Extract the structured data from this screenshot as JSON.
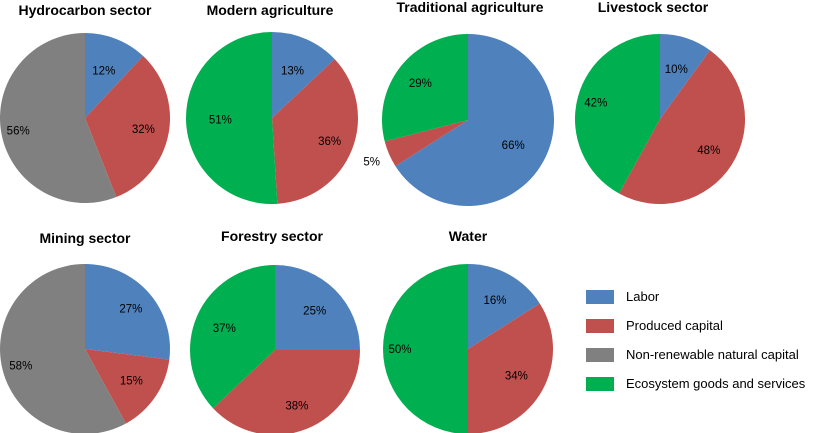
{
  "series_names": [
    "Labor",
    "Produced capital",
    "Non-renewable natural capital",
    "Ecosystem goods and services"
  ],
  "colors": {
    "Labor": "#4f81bd",
    "Produced capital": "#c0504d",
    "Non-renewable natural capital": "#808080",
    "Ecosystem goods and services": "#00b050"
  },
  "chart_data": [
    {
      "type": "pie",
      "title": "Hydrocarbon sector",
      "slices": [
        {
          "name": "Labor",
          "value": 12,
          "label": "12%"
        },
        {
          "name": "Produced capital",
          "value": 32,
          "label": "32%"
        },
        {
          "name": "Non-renewable natural capital",
          "value": 56,
          "label": "56%"
        }
      ]
    },
    {
      "type": "pie",
      "title": "Modern agriculture",
      "slices": [
        {
          "name": "Labor",
          "value": 13,
          "label": "13%"
        },
        {
          "name": "Produced capital",
          "value": 36,
          "label": "36%"
        },
        {
          "name": "Ecosystem goods and services",
          "value": 51,
          "label": "51%"
        }
      ]
    },
    {
      "type": "pie",
      "title": "Traditional agriculture",
      "slices": [
        {
          "name": "Labor",
          "value": 66,
          "label": "66%"
        },
        {
          "name": "Produced capital",
          "value": 5,
          "label": "5%"
        },
        {
          "name": "Ecosystem goods and services",
          "value": 29,
          "label": "29%"
        }
      ]
    },
    {
      "type": "pie",
      "title": "Livestock sector",
      "slices": [
        {
          "name": "Labor",
          "value": 10,
          "label": "10%"
        },
        {
          "name": "Produced capital",
          "value": 48,
          "label": "48%"
        },
        {
          "name": "Ecosystem goods and services",
          "value": 42,
          "label": "42%"
        }
      ]
    },
    {
      "type": "pie",
      "title": "Mining sector",
      "slices": [
        {
          "name": "Labor",
          "value": 27,
          "label": "27%"
        },
        {
          "name": "Produced capital",
          "value": 15,
          "label": "15%"
        },
        {
          "name": "Non-renewable natural capital",
          "value": 58,
          "label": "58%"
        }
      ]
    },
    {
      "type": "pie",
      "title": "Forestry sector",
      "slices": [
        {
          "name": "Labor",
          "value": 25,
          "label": "25%"
        },
        {
          "name": "Produced capital",
          "value": 38,
          "label": "38%"
        },
        {
          "name": "Ecosystem goods and services",
          "value": 37,
          "label": "37%"
        }
      ]
    },
    {
      "type": "pie",
      "title": "Water",
      "slices": [
        {
          "name": "Labor",
          "value": 16,
          "label": "16%"
        },
        {
          "name": "Produced capital",
          "value": 34,
          "label": "34%"
        },
        {
          "name": "Ecosystem goods and services",
          "value": 50,
          "label": "50%"
        }
      ]
    }
  ],
  "legend": {
    "position": "bottom-right",
    "items": [
      {
        "label": "Labor",
        "color": "#4f81bd"
      },
      {
        "label": "Produced capital",
        "color": "#c0504d"
      },
      {
        "label": "Non-renewable natural capital",
        "color": "#808080"
      },
      {
        "label": "Ecosystem goods and services",
        "color": "#00b050"
      }
    ]
  }
}
